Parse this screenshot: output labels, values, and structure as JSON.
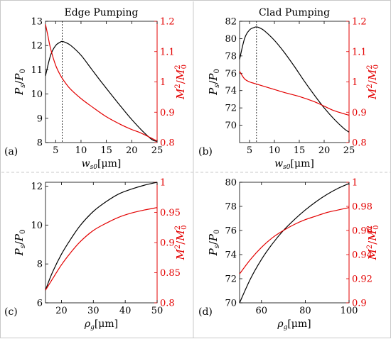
{
  "chart_data": [
    {
      "id": "a",
      "type": "line",
      "title": "Edge Pumping",
      "panel_label": "(a)",
      "xlabel": {
        "main": "w",
        "sub": "s0",
        "unit": "[μm]"
      },
      "ylabel_left": {
        "main": "P",
        "sub": "s",
        "den": "P",
        "den_sub": "0"
      },
      "ylabel_right": {
        "num": "M",
        "den": "M",
        "den_sub": "0"
      },
      "xlim": [
        3,
        25
      ],
      "ylim_left": [
        8,
        13
      ],
      "ylim_right": [
        0.8,
        1.2
      ],
      "xticks": [
        5,
        10,
        15,
        20,
        25
      ],
      "yticks_left": [
        8,
        9,
        10,
        11,
        12,
        13
      ],
      "yticks_right": [
        0.8,
        0.9,
        1,
        1.1,
        1.2
      ],
      "vline_x": 6.3,
      "series": [
        {
          "axis": "left",
          "color": "#000000",
          "x": [
            3,
            4,
            5,
            6,
            6.3,
            7,
            8,
            10,
            12,
            14,
            16,
            18,
            20,
            22,
            24,
            25
          ],
          "y": [
            10.75,
            11.6,
            12.0,
            12.15,
            12.17,
            12.12,
            12.0,
            11.6,
            11.05,
            10.5,
            9.97,
            9.45,
            8.95,
            8.5,
            8.12,
            8.05
          ]
        },
        {
          "axis": "right",
          "color": "#e30000",
          "x": [
            3,
            3.5,
            4,
            5,
            6,
            7,
            8,
            10,
            12,
            15,
            18,
            20,
            22,
            25
          ],
          "y": [
            1.19,
            1.15,
            1.11,
            1.055,
            1.02,
            0.995,
            0.975,
            0.945,
            0.92,
            0.885,
            0.858,
            0.843,
            0.83,
            0.805
          ]
        }
      ]
    },
    {
      "id": "b",
      "type": "line",
      "title": "Clad Pumping",
      "panel_label": "(b)",
      "xlabel": {
        "main": "w",
        "sub": "s0",
        "unit": "[μm]"
      },
      "ylabel_left": {
        "main": "P",
        "sub": "s",
        "den": "P",
        "den_sub": "0"
      },
      "ylabel_right": {
        "num": "M",
        "den": "M",
        "den_sub": "0"
      },
      "xlim": [
        3,
        25
      ],
      "ylim_left": [
        68,
        82
      ],
      "ylim_right": [
        0.8,
        1.2
      ],
      "xticks": [
        5,
        10,
        15,
        20,
        25
      ],
      "yticks_left": [
        70,
        72,
        74,
        76,
        78,
        80,
        82
      ],
      "yticks_right": [
        0.8,
        0.9,
        1,
        1.1,
        1.2
      ],
      "vline_x": 6.4,
      "series": [
        {
          "axis": "left",
          "color": "#000000",
          "x": [
            3,
            4,
            5,
            6,
            6.4,
            7,
            8,
            10,
            12,
            14,
            16,
            18,
            20,
            22,
            24,
            25
          ],
          "y": [
            77.6,
            80.0,
            81.0,
            81.3,
            81.35,
            81.25,
            80.9,
            79.8,
            78.4,
            76.8,
            75.1,
            73.5,
            72.0,
            70.7,
            69.6,
            69.2
          ]
        },
        {
          "axis": "right",
          "color": "#e30000",
          "x": [
            3,
            4,
            5,
            6,
            8,
            10,
            12,
            15,
            18,
            20,
            22,
            25
          ],
          "y": [
            1.035,
            1.01,
            1.0,
            0.995,
            0.985,
            0.975,
            0.965,
            0.952,
            0.935,
            0.92,
            0.905,
            0.89
          ]
        }
      ]
    },
    {
      "id": "c",
      "type": "line",
      "title": "",
      "panel_label": "(c)",
      "xlabel": {
        "main": "ρ",
        "sub": "g",
        "unit": "[μm]"
      },
      "ylabel_left": {
        "main": "P",
        "sub": "s",
        "den": "P",
        "den_sub": "0"
      },
      "ylabel_right": {
        "num": "M",
        "den": "M",
        "den_sub": "0"
      },
      "xlim": [
        15,
        50
      ],
      "ylim_left": [
        6,
        12.2
      ],
      "ylim_right": [
        0.8,
        1.0
      ],
      "xticks": [
        20,
        30,
        40,
        50
      ],
      "yticks_left": [
        6,
        8,
        10,
        12
      ],
      "yticks_right": [
        0.8,
        0.85,
        0.9,
        0.95,
        1
      ],
      "series": [
        {
          "axis": "left",
          "color": "#000000",
          "x": [
            15,
            17,
            20,
            23,
            26,
            30,
            34,
            38,
            42,
            46,
            50
          ],
          "y": [
            6.65,
            7.5,
            8.5,
            9.3,
            10.0,
            10.7,
            11.2,
            11.6,
            11.85,
            12.05,
            12.2
          ]
        },
        {
          "axis": "right",
          "color": "#e30000",
          "x": [
            15,
            17,
            20,
            23,
            26,
            30,
            34,
            38,
            42,
            46,
            50
          ],
          "y": [
            0.821,
            0.838,
            0.863,
            0.884,
            0.902,
            0.92,
            0.932,
            0.942,
            0.949,
            0.954,
            0.958
          ]
        }
      ]
    },
    {
      "id": "d",
      "type": "line",
      "title": "",
      "panel_label": "(d)",
      "xlabel": {
        "main": "ρ",
        "sub": "g",
        "unit": "[μm]"
      },
      "ylabel_left": {
        "main": "P",
        "sub": "s",
        "den": "P",
        "den_sub": "0"
      },
      "ylabel_right": {
        "num": "M",
        "den": "M",
        "den_sub": "0"
      },
      "xlim": [
        50,
        100
      ],
      "ylim_left": [
        70,
        80
      ],
      "ylim_right": [
        0.9,
        1.0
      ],
      "xticks": [
        60,
        80,
        100
      ],
      "yticks_left": [
        70,
        72,
        74,
        76,
        78,
        80
      ],
      "yticks_right": [
        0.9,
        0.92,
        0.94,
        0.96,
        0.98,
        1
      ],
      "series": [
        {
          "axis": "left",
          "color": "#000000",
          "x": [
            50,
            55,
            60,
            65,
            70,
            75,
            80,
            85,
            90,
            95,
            100
          ],
          "y": [
            70.0,
            72.0,
            73.6,
            74.9,
            76.0,
            76.9,
            77.7,
            78.4,
            79.0,
            79.5,
            79.9
          ]
        },
        {
          "axis": "right",
          "color": "#e30000",
          "x": [
            50,
            55,
            60,
            65,
            70,
            75,
            80,
            85,
            90,
            95,
            100
          ],
          "y": [
            0.924,
            0.936,
            0.946,
            0.954,
            0.96,
            0.965,
            0.969,
            0.972,
            0.975,
            0.977,
            0.979
          ]
        }
      ]
    }
  ]
}
